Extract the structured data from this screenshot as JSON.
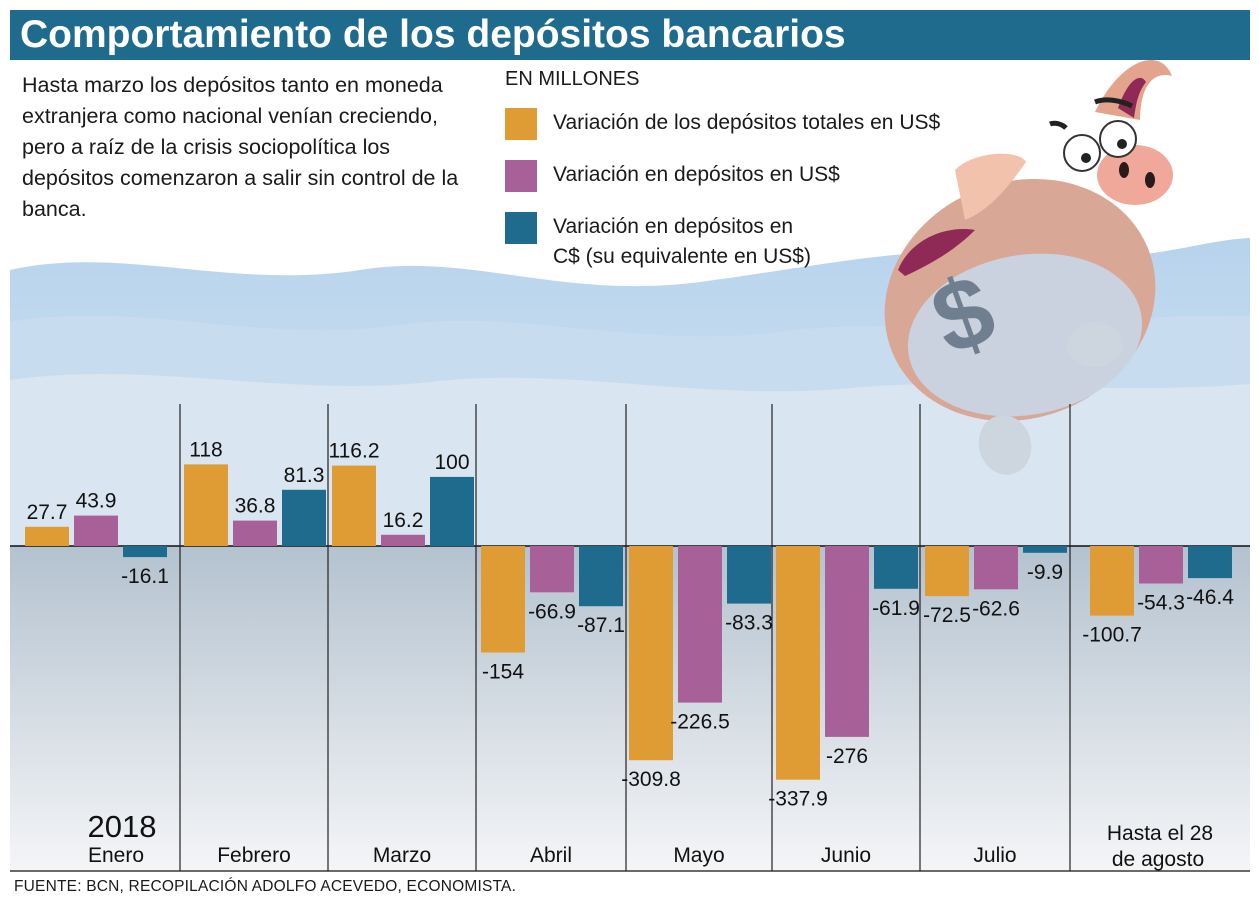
{
  "title": "Comportamiento de los depósitos bancarios",
  "intro": "Hasta marzo los depósitos tanto en moneda extranjera como nacional venían creciendo, pero a raíz de la crisis sociopolítica los depósitos comenzaron a salir sin control de la banca.",
  "units_label": "EN MILLONES",
  "source": "FUENTE: BCN, RECOPILACIÓN ADOLFO ACEVEDO, ECONOMISTA.",
  "year_label": "2018",
  "colors": {
    "title_bg": "#1f6b8e",
    "orange": "#df9b34",
    "purple": "#a76198",
    "blue": "#1f6b8e",
    "water_top": "#c8dcee",
    "water_bottom": "#dfe7ee"
  },
  "legend": [
    {
      "label": "Variación de los depósitos totales en US$",
      "color": "#df9b34"
    },
    {
      "label": "Variación en depósitos en US$",
      "color": "#a76198"
    },
    {
      "label": "Variación en depósitos en C$ (su equivalente en US$)",
      "color": "#1f6b8e"
    }
  ],
  "illustration": "piggy-bank-icon",
  "chart_data": {
    "type": "bar",
    "categories": [
      "Enero",
      "Febrero",
      "Marzo",
      "Abril",
      "Mayo",
      "Junio",
      "Julio",
      "Hasta el 28 de agosto"
    ],
    "series": [
      {
        "name": "Variación de los depósitos totales en US$",
        "values": [
          27.7,
          118,
          116.2,
          -154,
          -309.8,
          -337.9,
          -72.5,
          -100.7
        ]
      },
      {
        "name": "Variación en depósitos en US$",
        "values": [
          43.9,
          36.8,
          16.2,
          -66.9,
          -226.5,
          -276,
          -62.6,
          -54.3
        ]
      },
      {
        "name": "Variación en depósitos en C$ (su equivalente en US$)",
        "values": [
          -16.1,
          81.3,
          100,
          -87.1,
          -83.3,
          -61.9,
          -9.9,
          -46.4
        ]
      }
    ],
    "data_labels": [
      [
        "27.7",
        "118",
        "116.2",
        "-154",
        "-309.8",
        "-337.9",
        "-72.5",
        "-100.7"
      ],
      [
        "43.9",
        "36.8",
        "16.2",
        "-66.9",
        "-226.5",
        "-276",
        "-62.6",
        "-54.3"
      ],
      [
        "-16.1",
        "81.3",
        "100",
        "-87.1",
        "-83.3",
        "-61.9",
        "-9.9",
        "-46.4"
      ]
    ],
    "grid": false,
    "legend_position": "top"
  }
}
